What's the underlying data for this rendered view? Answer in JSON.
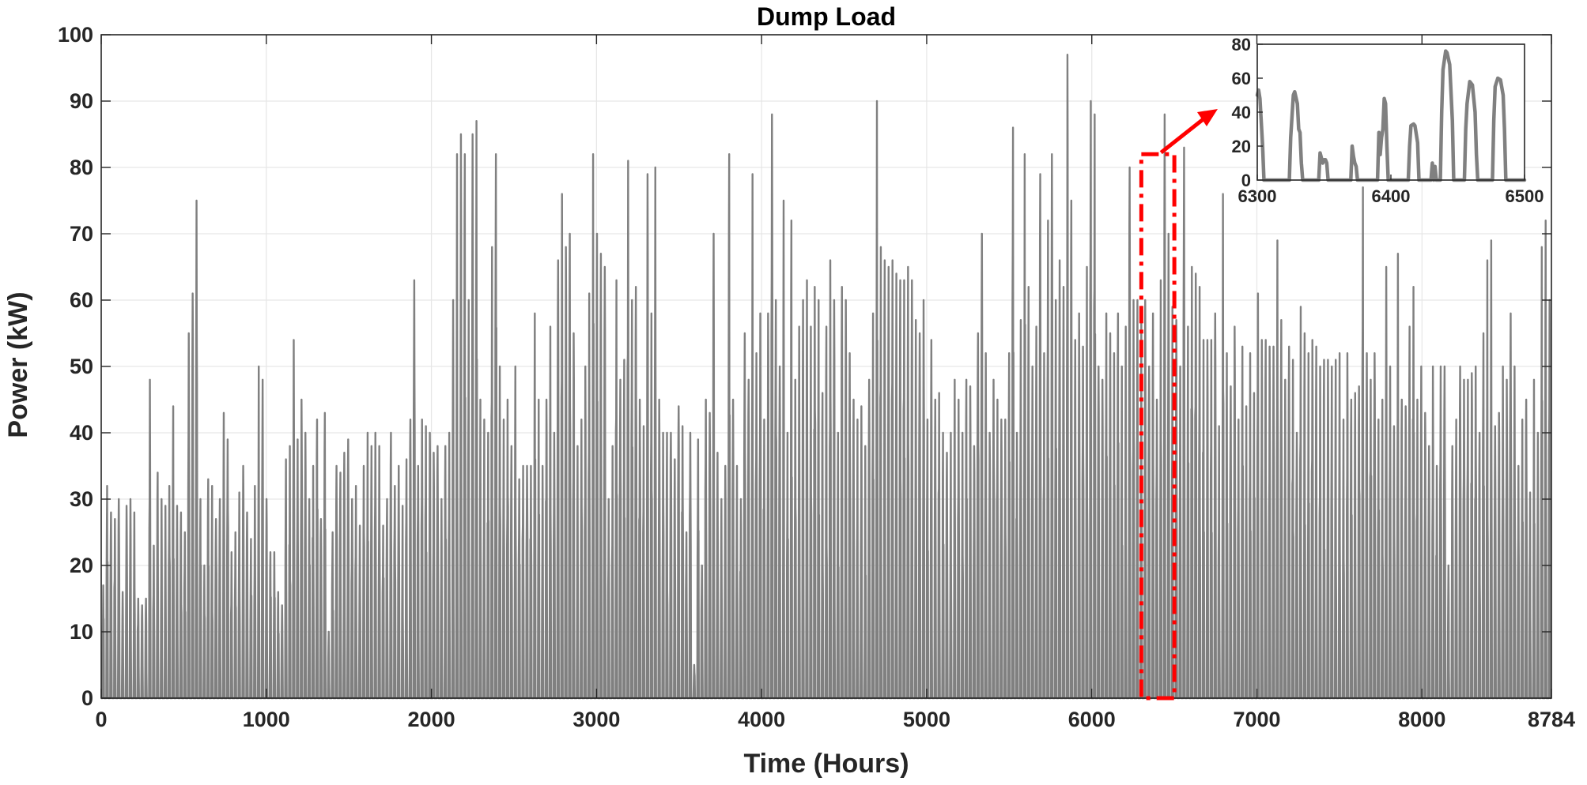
{
  "chart_data": [
    {
      "type": "line",
      "title": "Dump Load",
      "xlabel": "Time (Hours)",
      "ylabel": "Power (kW)",
      "xlim": [
        0,
        8784
      ],
      "ylim": [
        0,
        100
      ],
      "x_ticks": [
        0,
        1000,
        2000,
        3000,
        4000,
        5000,
        6000,
        7000,
        8000,
        8784
      ],
      "y_ticks": [
        0,
        10,
        20,
        30,
        40,
        50,
        60,
        70,
        80,
        90,
        100
      ],
      "grid": true,
      "series": [
        {
          "color": "#808080",
          "sampling": "daily maximum of hourly dump load (kW), one value per day over 366 days",
          "daily_peaks": [
            17,
            32,
            28,
            27,
            30,
            16,
            29,
            30,
            28,
            15,
            14,
            15,
            48,
            23,
            34,
            30,
            29,
            32,
            44,
            29,
            28,
            25,
            55,
            61,
            75,
            30,
            20,
            33,
            32,
            27,
            30,
            43,
            39,
            22,
            25,
            31,
            35,
            28,
            24,
            32,
            50,
            48,
            30,
            22,
            22,
            16,
            14,
            36,
            38,
            54,
            39,
            45,
            40,
            30,
            35,
            42,
            27,
            43,
            10,
            25,
            35,
            34,
            37,
            39,
            30,
            32,
            26,
            35,
            40,
            38,
            40,
            38,
            26,
            30,
            40,
            32,
            35,
            29,
            36,
            42,
            63,
            35,
            42,
            41,
            40,
            37,
            38,
            30,
            38,
            40,
            60,
            82,
            85,
            82,
            60,
            85,
            87,
            45,
            42,
            40,
            68,
            82,
            50,
            42,
            45,
            38,
            50,
            33,
            35,
            35,
            35,
            58,
            45,
            35,
            45,
            56,
            40,
            66,
            76,
            68,
            70,
            55,
            38,
            42,
            50,
            61,
            82,
            70,
            67,
            65,
            30,
            38,
            63,
            48,
            51,
            81,
            60,
            62,
            45,
            41,
            79,
            58,
            80,
            45,
            40,
            40,
            40,
            36,
            44,
            41,
            25,
            40,
            5,
            39,
            20,
            45,
            43,
            70,
            37,
            30,
            35,
            82,
            45,
            35,
            30,
            55,
            48,
            79,
            52,
            58,
            42,
            58,
            88,
            60,
            50,
            75,
            40,
            72,
            48,
            56,
            60,
            63,
            56,
            62,
            60,
            46,
            56,
            66,
            60,
            40,
            62,
            60,
            52,
            45,
            42,
            44,
            38,
            48,
            58,
            90,
            68,
            66,
            65,
            66,
            64,
            63,
            63,
            65,
            63,
            57,
            55,
            60,
            42,
            54,
            45,
            46,
            40,
            37,
            40,
            48,
            45,
            40,
            48,
            47,
            38,
            55,
            70,
            52,
            40,
            48,
            45,
            42,
            42,
            52,
            86,
            40,
            57,
            82,
            62,
            50,
            56,
            79,
            52,
            72,
            82,
            60,
            66,
            62,
            97,
            75,
            54,
            58,
            53,
            65,
            90,
            88,
            50,
            48,
            58,
            55,
            52,
            58,
            50,
            56,
            80,
            60,
            60,
            59,
            60,
            50,
            58,
            45,
            63,
            88,
            70,
            59,
            57,
            50,
            83,
            56,
            65,
            64,
            62,
            54,
            54,
            54,
            58,
            41,
            76,
            52,
            47,
            56,
            42,
            53,
            44,
            52,
            46,
            61,
            54,
            54,
            53,
            53,
            69,
            57,
            48,
            53,
            51,
            40,
            59,
            55,
            52,
            54,
            53,
            50,
            51,
            51,
            50,
            51,
            52,
            42,
            52,
            45,
            46,
            47,
            77,
            52,
            48,
            52,
            42,
            45,
            65,
            50,
            41,
            67,
            45,
            44,
            56,
            62,
            45,
            50,
            43,
            38,
            50,
            35,
            50,
            50,
            20,
            38,
            42,
            50,
            48,
            48,
            49,
            50,
            40,
            55,
            66,
            69,
            41,
            43,
            50,
            48,
            58,
            50,
            35,
            42,
            45,
            31,
            48,
            40,
            68,
            72,
            60
          ]
        }
      ],
      "annotation": {
        "highlight_x_range": [
          6300,
          6500
        ],
        "highlight_y_range": [
          0,
          82
        ],
        "highlight_color": "#ff0000",
        "highlight_style": "dash-dot rectangle with arrow pointing to inset"
      }
    },
    {
      "type": "line",
      "title": "",
      "xlabel": "",
      "ylabel": "",
      "xlim": [
        6300,
        6500
      ],
      "ylim": [
        0,
        80
      ],
      "x_ticks": [
        6300,
        6400,
        6500
      ],
      "y_ticks": [
        0,
        20,
        40,
        60,
        80
      ],
      "grid": false,
      "series": [
        {
          "color": "#808080",
          "points": [
            [
              6300,
              50
            ],
            [
              6301,
              53
            ],
            [
              6302,
              48
            ],
            [
              6304,
              20
            ],
            [
              6305,
              0
            ],
            [
              6324,
              0
            ],
            [
              6325,
              25
            ],
            [
              6327,
              50
            ],
            [
              6328,
              52
            ],
            [
              6330,
              45
            ],
            [
              6331,
              30
            ],
            [
              6332,
              28
            ],
            [
              6333,
              10
            ],
            [
              6334,
              0
            ],
            [
              6346,
              0
            ],
            [
              6347,
              16
            ],
            [
              6349,
              10
            ],
            [
              6350,
              12
            ],
            [
              6351,
              12
            ],
            [
              6352,
              10
            ],
            [
              6353,
              0
            ],
            [
              6370,
              0
            ],
            [
              6371,
              20
            ],
            [
              6372,
              14
            ],
            [
              6373,
              10
            ],
            [
              6374,
              8
            ],
            [
              6375,
              0
            ],
            [
              6390,
              0
            ],
            [
              6391,
              28
            ],
            [
              6392,
              15
            ],
            [
              6393,
              25
            ],
            [
              6394,
              30
            ],
            [
              6395,
              48
            ],
            [
              6396,
              45
            ],
            [
              6397,
              20
            ],
            [
              6398,
              0
            ],
            [
              6413,
              0
            ],
            [
              6414,
              20
            ],
            [
              6415,
              32
            ],
            [
              6417,
              33
            ],
            [
              6418,
              32
            ],
            [
              6420,
              22
            ],
            [
              6421,
              0
            ],
            [
              6430,
              0
            ],
            [
              6431,
              10
            ],
            [
              6432,
              0
            ],
            [
              6433,
              8
            ],
            [
              6434,
              0
            ],
            [
              6437,
              0
            ],
            [
              6438,
              40
            ],
            [
              6439,
              65
            ],
            [
              6441,
              76
            ],
            [
              6442,
              75
            ],
            [
              6444,
              68
            ],
            [
              6446,
              35
            ],
            [
              6447,
              0
            ],
            [
              6455,
              0
            ],
            [
              6456,
              30
            ],
            [
              6457,
              45
            ],
            [
              6459,
              58
            ],
            [
              6461,
              56
            ],
            [
              6463,
              40
            ],
            [
              6464,
              15
            ],
            [
              6465,
              0
            ],
            [
              6476,
              0
            ],
            [
              6477,
              35
            ],
            [
              6478,
              55
            ],
            [
              6480,
              60
            ],
            [
              6482,
              59
            ],
            [
              6484,
              50
            ],
            [
              6485,
              30
            ],
            [
              6486,
              0
            ],
            [
              6500,
              0
            ]
          ]
        }
      ]
    }
  ]
}
